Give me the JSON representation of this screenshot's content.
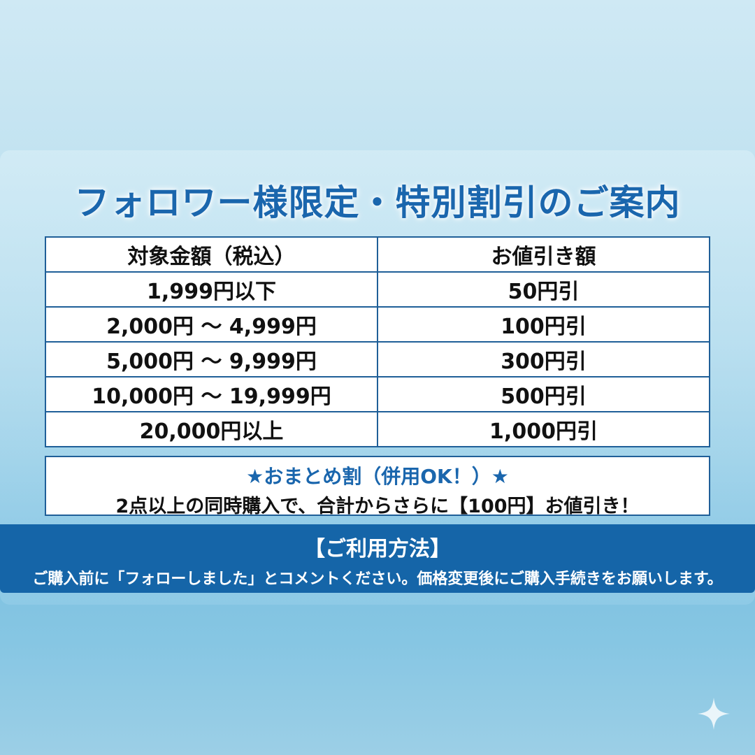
{
  "title": "フォロワー様限定・特別割引のご案内",
  "table": {
    "headers": [
      "対象金額（税込）",
      "お値引き額"
    ],
    "rows": [
      [
        "1,999円以下",
        "50円引"
      ],
      [
        "2,000円 ～ 4,999円",
        "100円引"
      ],
      [
        "5,000円 ～ 9,999円",
        "300円引"
      ],
      [
        "10,000円 ～ 19,999円",
        "500円引"
      ],
      [
        "20,000円以上",
        "1,000円引"
      ]
    ]
  },
  "bundle": {
    "heading": "★おまとめ割（併用OK！）★",
    "text": "2点以上の同時購入で、合計からさらに【100円】お値引き！"
  },
  "usage": {
    "heading": "【ご利用方法】",
    "text": "ご購入前に「フォローしました」とコメントください。価格変更後にご購入手続きをお願いします。"
  },
  "colors": {
    "accent": "#1a66ad",
    "banner": "#1565a8"
  },
  "icons": {
    "corner": "sparkle-icon"
  }
}
